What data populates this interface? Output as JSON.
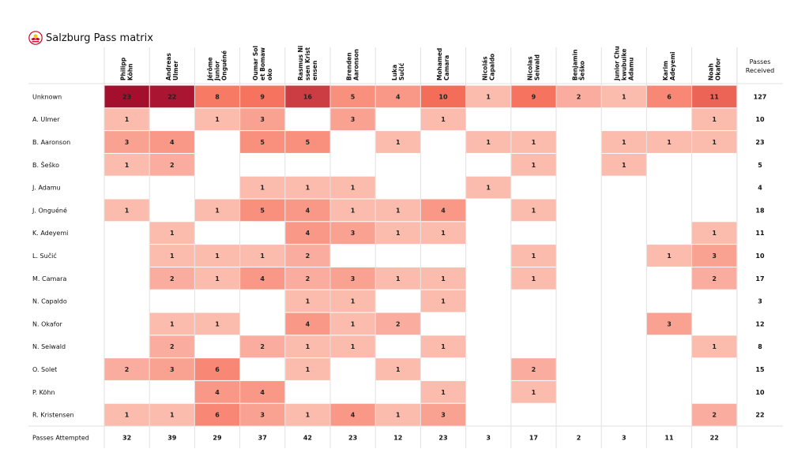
{
  "title": "Salzburg Pass matrix",
  "logo": {
    "icon": "red-bull-salzburg-crest-icon",
    "colors": [
      "#d2001f",
      "#f6c400",
      "#ffffff"
    ]
  },
  "chart_data": {
    "type": "heatmap",
    "title": "Salzburg Pass matrix",
    "columns": [
      "Philipp Köhn",
      "Andreas Ulmer",
      "Jérôme Junior Onguéné",
      "Oumar Solet Bomawoko",
      "Rasmus Nissen Kristensen",
      "Brenden Aaronson",
      "Luka Sučić",
      "Mohamed Camara",
      "Nicolás Capaldo",
      "Nicolas Seiwald",
      "Benjamin Šeško",
      "Junior Chukwubuike Adamu",
      "Karim Adeyemi",
      "Noah Okafor"
    ],
    "column_header_lines": [
      [
        "Philipp",
        "Köhn"
      ],
      [
        "Andreas",
        "Ulmer"
      ],
      [
        "Jérôme",
        "Junior",
        "Onguéné"
      ],
      [
        "Oumar Sol",
        "et Bomaw",
        "oko"
      ],
      [
        "Rasmus Ni",
        "ssen Krist",
        "ensen"
      ],
      [
        "Brenden",
        "Aaronson"
      ],
      [
        "Luka",
        "Sučić"
      ],
      [
        "Mohamed",
        "Camara"
      ],
      [
        "Nicolás",
        "Capaldo"
      ],
      [
        "Nicolas",
        "Seiwald"
      ],
      [
        "Benjamin",
        "Šeško"
      ],
      [
        "Junior Chu",
        "kwubuike",
        "Adamu"
      ],
      [
        "Karim",
        "Adeyemi"
      ],
      [
        "Noah",
        "Okafor"
      ]
    ],
    "rows": [
      "Unknown",
      "A. Ulmer",
      "B. Aaronson",
      "B. Šeško",
      "J. Adamu",
      "J. Onguéné",
      "K. Adeyemi",
      "L. Sučić",
      "M. Camara",
      "N. Capaldo",
      "N. Okafor",
      "N. Seiwald",
      "O. Solet",
      "P. Köhn",
      "R. Kristensen"
    ],
    "values": [
      [
        23,
        22,
        8,
        9,
        16,
        5,
        4,
        10,
        1,
        9,
        2,
        1,
        6,
        11
      ],
      [
        1,
        null,
        1,
        3,
        null,
        3,
        null,
        1,
        null,
        null,
        null,
        null,
        null,
        1
      ],
      [
        3,
        4,
        null,
        5,
        5,
        null,
        1,
        null,
        1,
        1,
        null,
        1,
        1,
        1
      ],
      [
        1,
        2,
        null,
        null,
        null,
        null,
        null,
        null,
        null,
        1,
        null,
        1,
        null,
        null
      ],
      [
        null,
        null,
        null,
        1,
        1,
        1,
        null,
        null,
        1,
        null,
        null,
        null,
        null,
        null
      ],
      [
        1,
        null,
        1,
        5,
        4,
        1,
        1,
        4,
        null,
        1,
        null,
        null,
        null,
        null
      ],
      [
        null,
        1,
        null,
        null,
        4,
        3,
        1,
        1,
        null,
        null,
        null,
        null,
        null,
        1
      ],
      [
        null,
        1,
        1,
        1,
        2,
        null,
        null,
        null,
        null,
        1,
        null,
        null,
        1,
        3
      ],
      [
        null,
        2,
        1,
        4,
        2,
        3,
        1,
        1,
        null,
        1,
        null,
        null,
        null,
        2
      ],
      [
        null,
        null,
        null,
        null,
        1,
        1,
        null,
        1,
        null,
        null,
        null,
        null,
        null,
        null
      ],
      [
        null,
        1,
        1,
        null,
        4,
        1,
        2,
        null,
        null,
        null,
        null,
        null,
        3,
        null
      ],
      [
        null,
        2,
        null,
        2,
        1,
        1,
        null,
        1,
        null,
        null,
        null,
        null,
        null,
        1
      ],
      [
        2,
        3,
        6,
        null,
        1,
        null,
        1,
        null,
        null,
        2,
        null,
        null,
        null,
        null
      ],
      [
        null,
        null,
        4,
        4,
        null,
        null,
        null,
        1,
        null,
        1,
        null,
        null,
        null,
        null
      ],
      [
        1,
        1,
        6,
        3,
        1,
        4,
        1,
        3,
        null,
        null,
        null,
        null,
        null,
        2
      ]
    ],
    "row_totals_label": [
      "Passes",
      "Received"
    ],
    "row_totals": [
      127,
      10,
      23,
      5,
      4,
      18,
      11,
      10,
      17,
      3,
      12,
      8,
      15,
      10,
      22
    ],
    "column_totals_label": "Passes Attempted",
    "column_totals": [
      32,
      39,
      29,
      37,
      42,
      23,
      12,
      23,
      3,
      17,
      2,
      3,
      11,
      22
    ],
    "color_scale": {
      "low": "#fee0d6",
      "mid": "#f6705a",
      "high": "#a50f2e"
    }
  }
}
